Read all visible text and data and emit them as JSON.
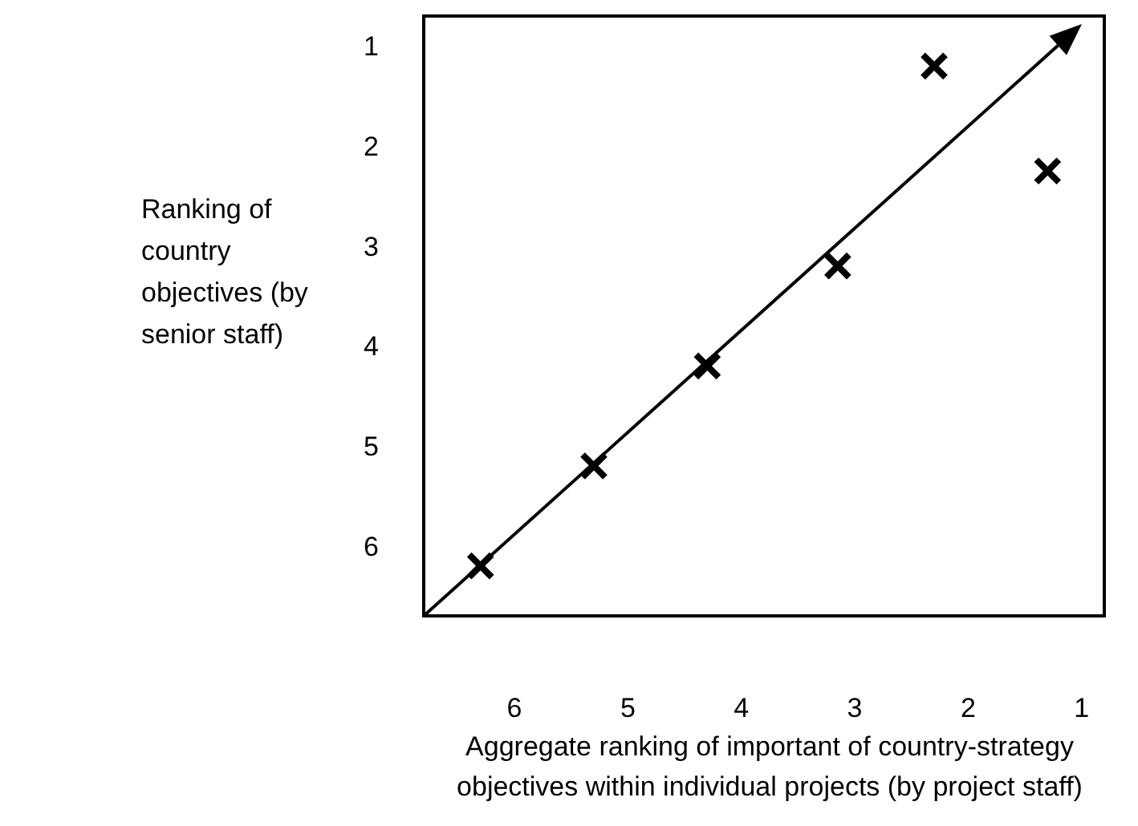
{
  "chart_data": {
    "type": "scatter",
    "xlabel": "Aggregate ranking of important of country-strategy objectives within individual projects (by project staff)",
    "ylabel": "Ranking of country objectives (by senior staff)",
    "xlim": [
      6.8,
      0.8
    ],
    "ylim": [
      6.7,
      0.7
    ],
    "xticks": [
      6,
      5,
      4,
      3,
      2,
      1
    ],
    "yticks": [
      1,
      2,
      3,
      4,
      5,
      6
    ],
    "series": [
      {
        "color": "#000000",
        "marker": "cross",
        "x": [
          6.3,
          5.3,
          4.3,
          3.15,
          2.3,
          1.3
        ],
        "values": [
          6.2,
          5.2,
          4.2,
          3.2,
          1.2,
          2.25
        ]
      }
    ]
  }
}
